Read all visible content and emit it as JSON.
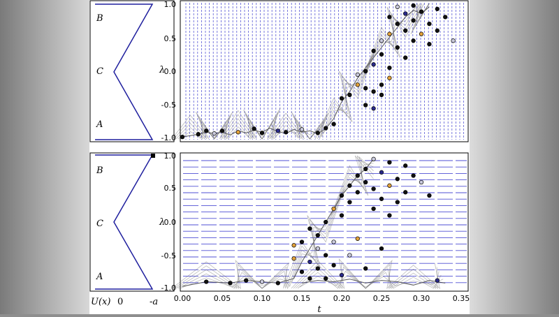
{
  "colors": {
    "potential_line": "#1f1f9e",
    "grid_lines": "#3c3cd0",
    "trajectory": "#3a3a3a",
    "point_dark": "#111111",
    "point_light": "#c9c9dc",
    "point_orange": "#e3a23a",
    "point_blue": "#2a2a8a"
  },
  "chart_data": [
    {
      "panel": "top",
      "type": "scatter",
      "ylabel": "λ",
      "ylim": [
        -1.0,
        1.0
      ],
      "yticks": [
        "-1.0",
        "-0.5",
        "0.0",
        "0.5",
        "1.0"
      ],
      "grid": "vertical dashed lines",
      "potential": {
        "state_labels": [
          "B",
          "C",
          "A"
        ],
        "shape": "zigzag"
      },
      "series": [
        {
          "values": [
            [
              0.0,
              -0.97
            ],
            [
              0.01,
              -0.95
            ],
            [
              0.02,
              -0.93
            ],
            [
              0.03,
              -0.9
            ],
            [
              0.04,
              -0.92
            ],
            [
              0.05,
              -0.9
            ],
            [
              0.06,
              -0.94
            ],
            [
              0.07,
              -0.88
            ],
            [
              0.08,
              -0.91
            ],
            [
              0.09,
              -0.87
            ],
            [
              0.1,
              -0.9
            ],
            [
              0.11,
              -0.84
            ],
            [
              0.12,
              -0.89
            ],
            [
              0.13,
              -0.92
            ],
            [
              0.14,
              -0.86
            ],
            [
              0.15,
              -0.9
            ],
            [
              0.16,
              -0.88
            ],
            [
              0.17,
              -0.92
            ],
            [
              0.18,
              -0.85
            ],
            [
              0.19,
              -0.7
            ],
            [
              0.2,
              -0.45
            ],
            [
              0.21,
              -0.3
            ],
            [
              0.22,
              -0.1
            ],
            [
              0.23,
              0.05
            ],
            [
              0.24,
              0.2
            ],
            [
              0.25,
              0.35
            ],
            [
              0.26,
              0.5
            ],
            [
              0.27,
              0.65
            ],
            [
              0.28,
              0.8
            ],
            [
              0.29,
              0.9
            ],
            [
              0.3,
              0.85
            ],
            [
              0.31,
              0.95
            ]
          ]
        }
      ],
      "points": [
        [
          0.0,
          -0.97
        ],
        [
          0.02,
          -0.93
        ],
        [
          0.03,
          -0.88
        ],
        [
          0.04,
          -0.92
        ],
        [
          0.05,
          -0.88
        ],
        [
          0.07,
          -0.9
        ],
        [
          0.09,
          -0.85
        ],
        [
          0.1,
          -0.91
        ],
        [
          0.12,
          -0.88
        ],
        [
          0.13,
          -0.9
        ],
        [
          0.15,
          -0.86
        ],
        [
          0.17,
          -0.91
        ],
        [
          0.18,
          -0.84
        ],
        [
          0.19,
          -0.78
        ],
        [
          0.2,
          -0.4
        ],
        [
          0.21,
          -0.35
        ],
        [
          0.22,
          -0.2
        ],
        [
          0.22,
          -0.05
        ],
        [
          0.23,
          0.0
        ],
        [
          0.23,
          -0.5
        ],
        [
          0.24,
          -0.3
        ],
        [
          0.24,
          0.1
        ],
        [
          0.24,
          0.3
        ],
        [
          0.25,
          -0.2
        ],
        [
          0.25,
          0.45
        ],
        [
          0.25,
          0.25
        ],
        [
          0.26,
          0.05
        ],
        [
          0.26,
          0.55
        ],
        [
          0.26,
          0.8
        ],
        [
          0.27,
          0.35
        ],
        [
          0.27,
          0.7
        ],
        [
          0.27,
          0.95
        ],
        [
          0.28,
          0.2
        ],
        [
          0.28,
          0.6
        ],
        [
          0.28,
          0.85
        ],
        [
          0.29,
          0.45
        ],
        [
          0.29,
          0.75
        ],
        [
          0.29,
          0.97
        ],
        [
          0.3,
          0.55
        ],
        [
          0.3,
          0.88
        ],
        [
          0.31,
          0.4
        ],
        [
          0.31,
          0.7
        ],
        [
          0.32,
          0.92
        ],
        [
          0.32,
          0.6
        ],
        [
          0.33,
          0.8
        ],
        [
          0.34,
          0.45
        ],
        [
          0.25,
          -0.35
        ],
        [
          0.24,
          -0.55
        ],
        [
          0.23,
          -0.25
        ],
        [
          0.26,
          -0.1
        ]
      ]
    },
    {
      "panel": "bottom",
      "type": "scatter",
      "xlabel": "t",
      "ylabel": "λ",
      "xlim": [
        0.0,
        0.35
      ],
      "ylim": [
        -1.0,
        1.0
      ],
      "xticks": [
        "0.00",
        "0.05",
        "0.10",
        "0.15",
        "0.20",
        "0.25",
        "0.30",
        "0.35"
      ],
      "yticks": [
        "-1.0",
        "-0.5",
        "0.0",
        "0.5",
        "1.0"
      ],
      "grid": "horizontal dashed lines",
      "potential": {
        "state_labels": [
          "B",
          "C",
          "A"
        ],
        "axis_labels": [
          "U(x)",
          "0",
          "-a"
        ],
        "shape": "zigzag"
      },
      "series": [
        {
          "values": [
            [
              0.0,
              -0.97
            ],
            [
              0.03,
              -0.9
            ],
            [
              0.06,
              -0.92
            ],
            [
              0.08,
              -0.88
            ],
            [
              0.1,
              -0.9
            ],
            [
              0.12,
              -0.92
            ],
            [
              0.14,
              -0.85
            ],
            [
              0.15,
              -0.6
            ],
            [
              0.16,
              -0.4
            ],
            [
              0.17,
              -0.2
            ],
            [
              0.18,
              0.0
            ],
            [
              0.19,
              0.2
            ],
            [
              0.2,
              0.4
            ],
            [
              0.21,
              0.55
            ],
            [
              0.22,
              0.7
            ],
            [
              0.23,
              0.8
            ],
            [
              0.24,
              0.95
            ]
          ]
        },
        {
          "values": [
            [
              0.15,
              -0.92
            ],
            [
              0.17,
              -0.88
            ],
            [
              0.19,
              -0.9
            ],
            [
              0.21,
              -0.86
            ],
            [
              0.23,
              -0.92
            ],
            [
              0.25,
              -0.88
            ],
            [
              0.27,
              -0.9
            ],
            [
              0.29,
              -0.95
            ],
            [
              0.31,
              -0.88
            ],
            [
              0.33,
              -0.92
            ]
          ]
        }
      ],
      "points": [
        [
          0.03,
          -0.9
        ],
        [
          0.06,
          -0.92
        ],
        [
          0.08,
          -0.88
        ],
        [
          0.1,
          -0.9
        ],
        [
          0.12,
          -0.92
        ],
        [
          0.14,
          -0.55
        ],
        [
          0.15,
          -0.3
        ],
        [
          0.15,
          -0.75
        ],
        [
          0.16,
          -0.6
        ],
        [
          0.16,
          -0.85
        ],
        [
          0.17,
          -0.4
        ],
        [
          0.17,
          -0.2
        ],
        [
          0.17,
          -0.7
        ],
        [
          0.18,
          -0.5
        ],
        [
          0.18,
          0.0
        ],
        [
          0.18,
          -0.85
        ],
        [
          0.19,
          0.2
        ],
        [
          0.19,
          -0.3
        ],
        [
          0.19,
          -0.65
        ],
        [
          0.2,
          0.4
        ],
        [
          0.2,
          0.1
        ],
        [
          0.2,
          -0.8
        ],
        [
          0.21,
          0.55
        ],
        [
          0.21,
          0.3
        ],
        [
          0.21,
          -0.5
        ],
        [
          0.22,
          0.7
        ],
        [
          0.22,
          0.45
        ],
        [
          0.22,
          -0.25
        ],
        [
          0.23,
          0.8
        ],
        [
          0.23,
          0.6
        ],
        [
          0.23,
          -0.7
        ],
        [
          0.24,
          0.95
        ],
        [
          0.24,
          0.5
        ],
        [
          0.24,
          0.2
        ],
        [
          0.25,
          0.75
        ],
        [
          0.25,
          0.35
        ],
        [
          0.25,
          -0.4
        ],
        [
          0.26,
          0.9
        ],
        [
          0.26,
          0.55
        ],
        [
          0.26,
          0.1
        ],
        [
          0.27,
          0.65
        ],
        [
          0.27,
          0.3
        ],
        [
          0.28,
          0.85
        ],
        [
          0.28,
          0.45
        ],
        [
          0.29,
          0.7
        ],
        [
          0.3,
          0.6
        ],
        [
          0.31,
          0.4
        ],
        [
          0.32,
          -0.88
        ],
        [
          0.16,
          -0.1
        ],
        [
          0.14,
          -0.35
        ]
      ]
    }
  ]
}
